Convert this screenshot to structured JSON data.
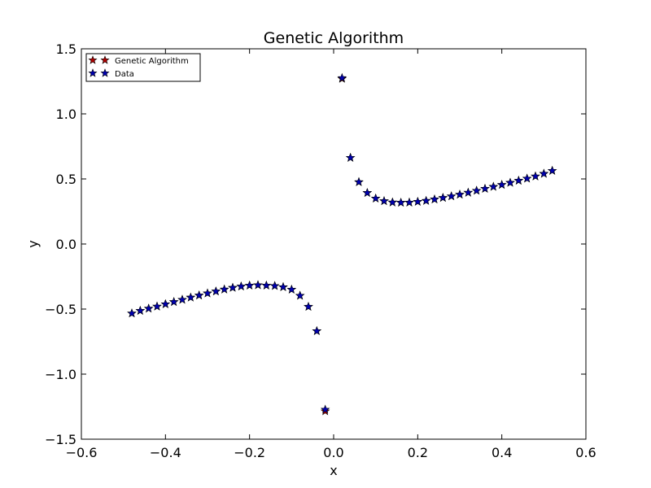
{
  "chart_data": {
    "type": "scatter",
    "title": "Genetic Algorithm",
    "xlabel": "x",
    "ylabel": "y",
    "xlim": [
      -0.6,
      0.6
    ],
    "ylim": [
      -1.5,
      1.5
    ],
    "xticks": [
      "−0.6",
      "−0.4",
      "−0.2",
      "0.0",
      "0.2",
      "0.4",
      "0.6"
    ],
    "yticks": [
      "−1.5",
      "−1.0",
      "−0.5",
      "0.0",
      "0.5",
      "1.0",
      "1.5"
    ],
    "grid": false,
    "legend_position": "top-left",
    "series": [
      {
        "name": "Genetic Algorithm",
        "color": "#b00000",
        "marker": "star",
        "x": [
          -0.48,
          -0.46,
          -0.44,
          -0.42,
          -0.4,
          -0.38,
          -0.36,
          -0.34,
          -0.32,
          -0.3,
          -0.28,
          -0.26,
          -0.24,
          -0.22,
          -0.2,
          -0.18,
          -0.16,
          -0.14,
          -0.12,
          -0.1,
          -0.08,
          -0.06,
          -0.04,
          -0.02,
          0.02,
          0.04,
          0.06,
          0.08,
          0.1,
          0.12,
          0.14,
          0.16,
          0.18,
          0.2,
          0.22,
          0.24,
          0.26,
          0.28,
          0.3,
          0.32,
          0.34,
          0.36,
          0.38,
          0.4,
          0.42,
          0.44,
          0.46,
          0.48,
          0.5,
          0.52
        ],
        "y": [
          -0.533,
          -0.513,
          -0.496,
          -0.48,
          -0.462,
          -0.445,
          -0.428,
          -0.411,
          -0.395,
          -0.379,
          -0.364,
          -0.349,
          -0.336,
          -0.326,
          -0.319,
          -0.316,
          -0.319,
          -0.322,
          -0.331,
          -0.35,
          -0.397,
          -0.482,
          -0.669,
          -1.285,
          1.27,
          0.663,
          0.476,
          0.393,
          0.35,
          0.33,
          0.32,
          0.318,
          0.319,
          0.325,
          0.332,
          0.343,
          0.355,
          0.367,
          0.38,
          0.395,
          0.41,
          0.425,
          0.44,
          0.455,
          0.471,
          0.487,
          0.503,
          0.52,
          0.54,
          0.563
        ]
      },
      {
        "name": "Data",
        "color": "#0000b0",
        "marker": "star",
        "x": [
          -0.48,
          -0.46,
          -0.44,
          -0.42,
          -0.4,
          -0.38,
          -0.36,
          -0.34,
          -0.32,
          -0.3,
          -0.28,
          -0.26,
          -0.24,
          -0.22,
          -0.2,
          -0.18,
          -0.16,
          -0.14,
          -0.12,
          -0.1,
          -0.08,
          -0.06,
          -0.04,
          -0.02,
          0.02,
          0.04,
          0.06,
          0.08,
          0.1,
          0.12,
          0.14,
          0.16,
          0.18,
          0.2,
          0.22,
          0.24,
          0.26,
          0.28,
          0.3,
          0.32,
          0.34,
          0.36,
          0.38,
          0.4,
          0.42,
          0.44,
          0.46,
          0.48,
          0.5,
          0.52
        ],
        "y": [
          -0.533,
          -0.513,
          -0.496,
          -0.48,
          -0.462,
          -0.445,
          -0.428,
          -0.411,
          -0.395,
          -0.379,
          -0.364,
          -0.349,
          -0.336,
          -0.326,
          -0.319,
          -0.316,
          -0.319,
          -0.322,
          -0.331,
          -0.35,
          -0.397,
          -0.482,
          -0.669,
          -1.272,
          1.276,
          0.663,
          0.476,
          0.393,
          0.35,
          0.33,
          0.32,
          0.318,
          0.319,
          0.325,
          0.332,
          0.343,
          0.355,
          0.367,
          0.38,
          0.395,
          0.41,
          0.425,
          0.44,
          0.455,
          0.471,
          0.487,
          0.503,
          0.52,
          0.54,
          0.563
        ]
      }
    ]
  }
}
